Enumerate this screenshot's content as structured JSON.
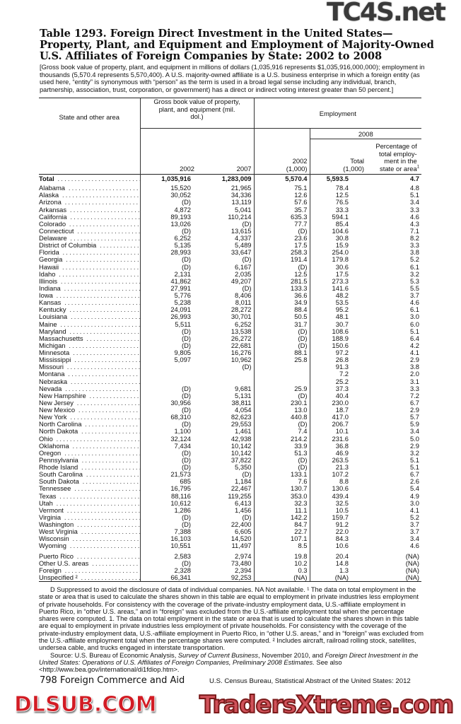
{
  "watermarks": {
    "top": "TC4S.net",
    "middle": "DLSUB.COM",
    "bottom": "TradersXtreme.com"
  },
  "title": "Table 1293. Foreign Direct Investment in the United States—Property, Plant, and Equipment and Employment of Majority-Owned U.S. Affiliates of Foreign Companies by State: 2002 to 2008",
  "headnote": "[Gross book value of property, plant, and equipment in millions of dollars (1,035,916 represents $1,035,916,000,000); employment in thousands (5,570.4 represents 5,570,400). A U.S. majority-owned affiliate is a U.S. business enterprise in which a foreign entity (as used here, “entity” is synonymous with “person” as the term is used in a broad legal sense including any individual, branch, partnership, association, trust, corporation, or government) has a direct or indirect voting interest greater than 50 percent.]",
  "table": {
    "headers": {
      "state": "State and other area",
      "ppe_group": "Gross book value of property, plant, and equipment (mil. dol.)",
      "ppe_2002": "2002",
      "ppe_2007": "2007",
      "emp_group": "Employment",
      "emp_2002": "2002 (1,000)",
      "emp_2008_group": "2008",
      "emp_2008_total": "Total (1,000)",
      "emp_2008_pct": "Percentage of total employ-ment in the state or area",
      "emp_2008_pct_note": "1"
    },
    "total": [
      "Total",
      "1,035,916",
      "1,283,009",
      "5,570.4",
      "5,593.5",
      "4.7"
    ],
    "rows": [
      [
        "Alabama",
        "15,520",
        "21,965",
        "75.1",
        "78.4",
        "4.8"
      ],
      [
        "Alaska",
        "30,052",
        "34,336",
        "12.6",
        "12.5",
        "5.1"
      ],
      [
        "Arizona",
        "(D)",
        "13,119",
        "57.6",
        "76.5",
        "3.4"
      ],
      [
        "Arkansas",
        "4,872",
        "5,041",
        "35.7",
        "33.3",
        "3.3"
      ],
      [
        "California",
        "89,193",
        "110,214",
        "635.3",
        "594.1",
        "4.6"
      ],
      [
        "Colorado",
        "13,026",
        "(D)",
        "77.7",
        "85.4",
        "4.3"
      ],
      [
        "Connecticut",
        "(D)",
        "13,615",
        "(D)",
        "104.6",
        "7.1"
      ],
      [
        "Delaware",
        "6,252",
        "4,337",
        "23.6",
        "30.8",
        "8.2"
      ],
      [
        "District of Columbia",
        "5,135",
        "5,489",
        "17.5",
        "15.9",
        "3.3"
      ],
      [
        "Florida",
        "28,993",
        "33,647",
        "258.3",
        "254.0",
        "3.8"
      ],
      [
        "Georgia",
        "(D)",
        "(D)",
        "191.4",
        "179.8",
        "5.2"
      ],
      [
        "Hawaii",
        "(D)",
        "6,167",
        "(D)",
        "30.6",
        "6.1"
      ],
      [
        "Idaho",
        "2,131",
        "2,035",
        "12.5",
        "17.5",
        "3.2"
      ],
      [
        "Illinois",
        "41,862",
        "49,207",
        "281.5",
        "273.3",
        "5.3"
      ],
      [
        "Indiana",
        "27,991",
        "(D)",
        "133.3",
        "141.6",
        "5.5"
      ],
      [
        "Iowa",
        "5,776",
        "8,406",
        "36.6",
        "48.2",
        "3.7"
      ],
      [
        "Kansas",
        "5,238",
        "8,011",
        "34.9",
        "53.5",
        "4.6"
      ],
      [
        "Kentucky",
        "24,091",
        "28,272",
        "88.4",
        "95.2",
        "6.1"
      ],
      [
        "Louisiana",
        "26,993",
        "30,701",
        "50.5",
        "48.1",
        "3.0"
      ],
      [
        "Maine",
        "5,511",
        "6,252",
        "31.7",
        "30.7",
        "6.0"
      ],
      [
        "Maryland",
        "(D)",
        "13,538",
        "(D)",
        "108.6",
        "5.1"
      ],
      [
        "Massachusetts",
        "(D)",
        "26,272",
        "(D)",
        "188.9",
        "6.4"
      ],
      [
        "Michigan",
        "(D)",
        "22,681",
        "(D)",
        "150.6",
        "4.2"
      ],
      [
        "Minnesota",
        "9,805",
        "16,276",
        "88.1",
        "97.2",
        "4.1"
      ],
      [
        "Mississippi",
        "5,097",
        "10,962",
        "25.8",
        "26.8",
        "2.9"
      ],
      [
        "Missouri",
        "",
        "(D)",
        "",
        "91.3",
        "3.8"
      ],
      [
        "Montana",
        "",
        "",
        "",
        "7.2",
        "2.0"
      ],
      [
        "Nebraska",
        "",
        "",
        "",
        "25.2",
        "3.1"
      ],
      [
        "Nevada",
        "(D)",
        "9,681",
        "25.9",
        "37.3",
        "3.3"
      ],
      [
        "New Hampshire",
        "(D)",
        "5,131",
        "(D)",
        "40.4",
        "7.2"
      ],
      [
        "New Jersey",
        "30,956",
        "38,811",
        "230.1",
        "230.0",
        "6.7"
      ],
      [
        "New Mexico",
        "(D)",
        "4,054",
        "13.0",
        "18.7",
        "2.9"
      ],
      [
        "New York",
        "68,310",
        "82,623",
        "440.8",
        "417.0",
        "5.7"
      ],
      [
        "North Carolina",
        "(D)",
        "29,553",
        "(D)",
        "206.7",
        "5.9"
      ],
      [
        "North Dakota",
        "1,100",
        "1,461",
        "7.4",
        "10.1",
        "3.4"
      ],
      [
        "Ohio",
        "32,124",
        "42,938",
        "214.2",
        "231.6",
        "5.0"
      ],
      [
        "Oklahoma",
        "7,434",
        "10,142",
        "33.9",
        "36.8",
        "2.9"
      ],
      [
        "Oregon",
        "(D)",
        "10,142",
        "51.3",
        "46.9",
        "3.2"
      ],
      [
        "Pennsylvania",
        "(D)",
        "37,822",
        "(D)",
        "263.5",
        "5.1"
      ],
      [
        "Rhode Island",
        "(D)",
        "5,350",
        "(D)",
        "21.3",
        "5.1"
      ],
      [
        "South Carolina",
        "21,573",
        "(D)",
        "133.1",
        "107.2",
        "6.7"
      ],
      [
        "South Dakota",
        "685",
        "1,184",
        "7.6",
        "8.8",
        "2.6"
      ],
      [
        "Tennessee",
        "16,795",
        "22,467",
        "130.7",
        "130.6",
        "5.4"
      ],
      [
        "Texas",
        "88,116",
        "119,255",
        "353.0",
        "439.4",
        "4.9"
      ],
      [
        "Utah",
        "10,612",
        "6,413",
        "32.3",
        "32.5",
        "3.0"
      ],
      [
        "Vermont",
        "1,286",
        "1,456",
        "11.1",
        "10.5",
        "4.1"
      ],
      [
        "Virginia",
        "(D)",
        "(D)",
        "142.2",
        "159.7",
        "5.2"
      ],
      [
        "Washington",
        "(D)",
        "22,400",
        "84.7",
        "91.2",
        "3.7"
      ],
      [
        "West Virginia",
        "7,388",
        "6,605",
        "22.7",
        "22.0",
        "3.7"
      ],
      [
        "Wisconsin",
        "16,103",
        "14,520",
        "107.1",
        "84.3",
        "3.4"
      ],
      [
        "Wyoming",
        "10,551",
        "11,497",
        "8.5",
        "10.6",
        "4.6"
      ]
    ],
    "other_rows": [
      [
        "Puerto Rico",
        "2,583",
        "2,974",
        "19.8",
        "20.4",
        "(NA)"
      ],
      [
        "Other U.S. areas",
        "(D)",
        "73,480",
        "10.2",
        "14.8",
        "(NA)"
      ],
      [
        "Foreign",
        "2,328",
        "2,394",
        "0.3",
        "1.3",
        "(NA)"
      ],
      [
        "Unspecified ²",
        "66,341",
        "92,253",
        "(NA)",
        "(NA)",
        "(NA)"
      ]
    ]
  },
  "notes": {
    "footnotes": "D Suppressed to avoid the disclosure of data of individual companies. NA Not available. ¹ The data on total employment in the state or area that is used to calculate the shares shown in this table are equal to employment in private industries less employment of private households. For consistency with the coverage of the private-industry employment data, U.S.-affiliate employment in Puerto Rico, in “other U.S. areas,” and in “foreign” was excluded from the U.S.-affiliate employment total when the percentage shares were computed. 1. The data on total employment in the state or area that is used to calculate the shares shown in this table are equal to employment in private industries less employment of private households. For consistency with the coverage of the private-industry employment data, U.S.-affiliate employment in Puerto Rico, in “other U.S. areas,” and in “foreign” was excluded from the U.S.-affiliate employment total when the percentage shares were computed. ² Includes aircraft, railroad rolling stock, satellites, undersea cable, and trucks engaged in interstate transportation.",
    "source_prefix": "Source: U.S. Bureau of Economic Analysis, ",
    "source_pub1": "Survey of Current Business",
    "source_mid": ", November 2010, and ",
    "source_pub2": "Foreign Direct Investment in the United States: Operations of U.S. Affiliates of Foreign Companies, Preliminary 2008 Estimates.",
    "source_suffix": " See also <http://www.bea.gov/international/di1fdiop.htm>."
  },
  "footer": {
    "left": "798  Foreign Commerce and Aid",
    "right": "U.S. Census Bureau, Statistical Abstract of the United States: 2012"
  }
}
